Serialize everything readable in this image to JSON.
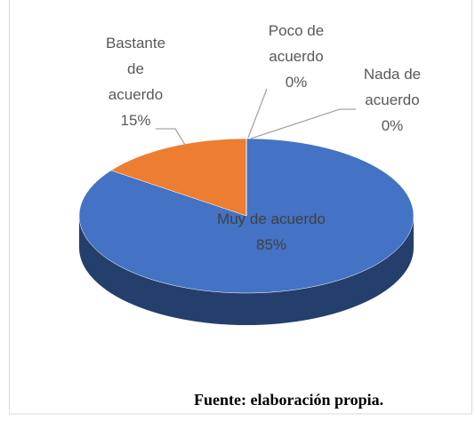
{
  "chart_data": {
    "type": "pie3d",
    "categories": [
      "Muy de acuerdo",
      "Bastante de acuerdo",
      "Poco de acuerdo",
      "Nada de acuerdo"
    ],
    "values": [
      85,
      15,
      0,
      0
    ],
    "value_labels": [
      "85%",
      "15%",
      "0%",
      "0%"
    ],
    "colors": [
      "#4472c4",
      "#ed7d31",
      "#a5a5a5",
      "#ffc000"
    ],
    "source": "Fuente: elaboración propia."
  }
}
